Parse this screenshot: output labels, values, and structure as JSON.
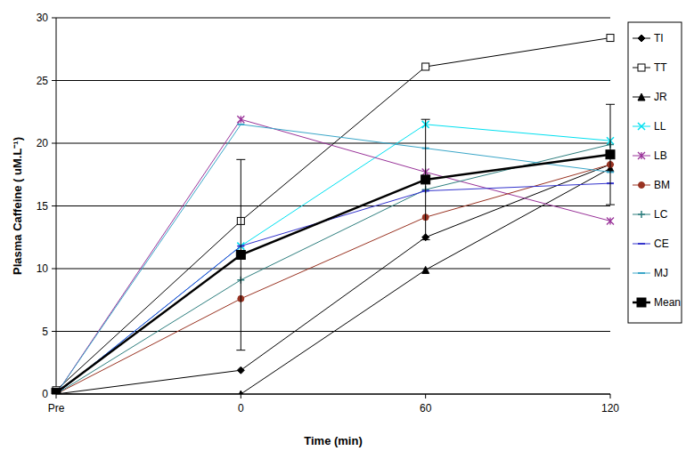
{
  "chart_data": {
    "type": "line",
    "x_label": "Time (min)",
    "y_label": "Plasma Caffeine ( uM.L⁻¹)",
    "categories": [
      "Pre",
      "0",
      "60",
      "120"
    ],
    "ylim": [
      0,
      30
    ],
    "yticks": [
      0,
      5,
      10,
      15,
      20,
      25,
      30
    ],
    "grid": true,
    "legend": "right",
    "series": [
      {
        "name": "TI",
        "color": "#000000",
        "marker": "diamond",
        "line_style": "solid",
        "values": [
          0,
          1.9,
          12.5,
          18.3
        ]
      },
      {
        "name": "TT",
        "color": "#000000",
        "marker": "square-open",
        "line_style": "solid",
        "values": [
          0.3,
          13.8,
          26.1,
          28.4
        ]
      },
      {
        "name": "JR",
        "color": "#000000",
        "marker": "triangle",
        "line_style": "solid",
        "values": [
          0,
          0,
          9.9,
          18
        ]
      },
      {
        "name": "LL",
        "color": "#00e0f0",
        "marker": "x",
        "line_style": "solid",
        "values": [
          0,
          11.8,
          21.5,
          20.2
        ]
      },
      {
        "name": "LB",
        "color": "#993399",
        "marker": "star",
        "line_style": "solid",
        "values": [
          0,
          21.9,
          17.7,
          13.8
        ]
      },
      {
        "name": "BM",
        "color": "#993322",
        "marker": "circle",
        "line_style": "solid",
        "values": [
          0,
          7.6,
          14.1,
          18.3
        ]
      },
      {
        "name": "LC",
        "color": "#2f7f7f",
        "marker": "plus",
        "line_style": "solid",
        "values": [
          0,
          9.1,
          16.3,
          19.9
        ]
      },
      {
        "name": "CE",
        "color": "#3333cc",
        "marker": "dash",
        "line_style": "solid",
        "values": [
          0,
          11.8,
          16.2,
          16.8
        ]
      },
      {
        "name": "MJ",
        "color": "#3aa6c8",
        "marker": "dash",
        "line_style": "solid",
        "values": [
          0,
          21.5,
          19.6,
          17.7
        ]
      },
      {
        "name": "Mean",
        "color": "#000000",
        "marker": "square",
        "line_style": "solid",
        "values": [
          0.1,
          11.1,
          17.1,
          19.1
        ],
        "errors": [
          0,
          7.6,
          4.8,
          4
        ]
      }
    ]
  }
}
